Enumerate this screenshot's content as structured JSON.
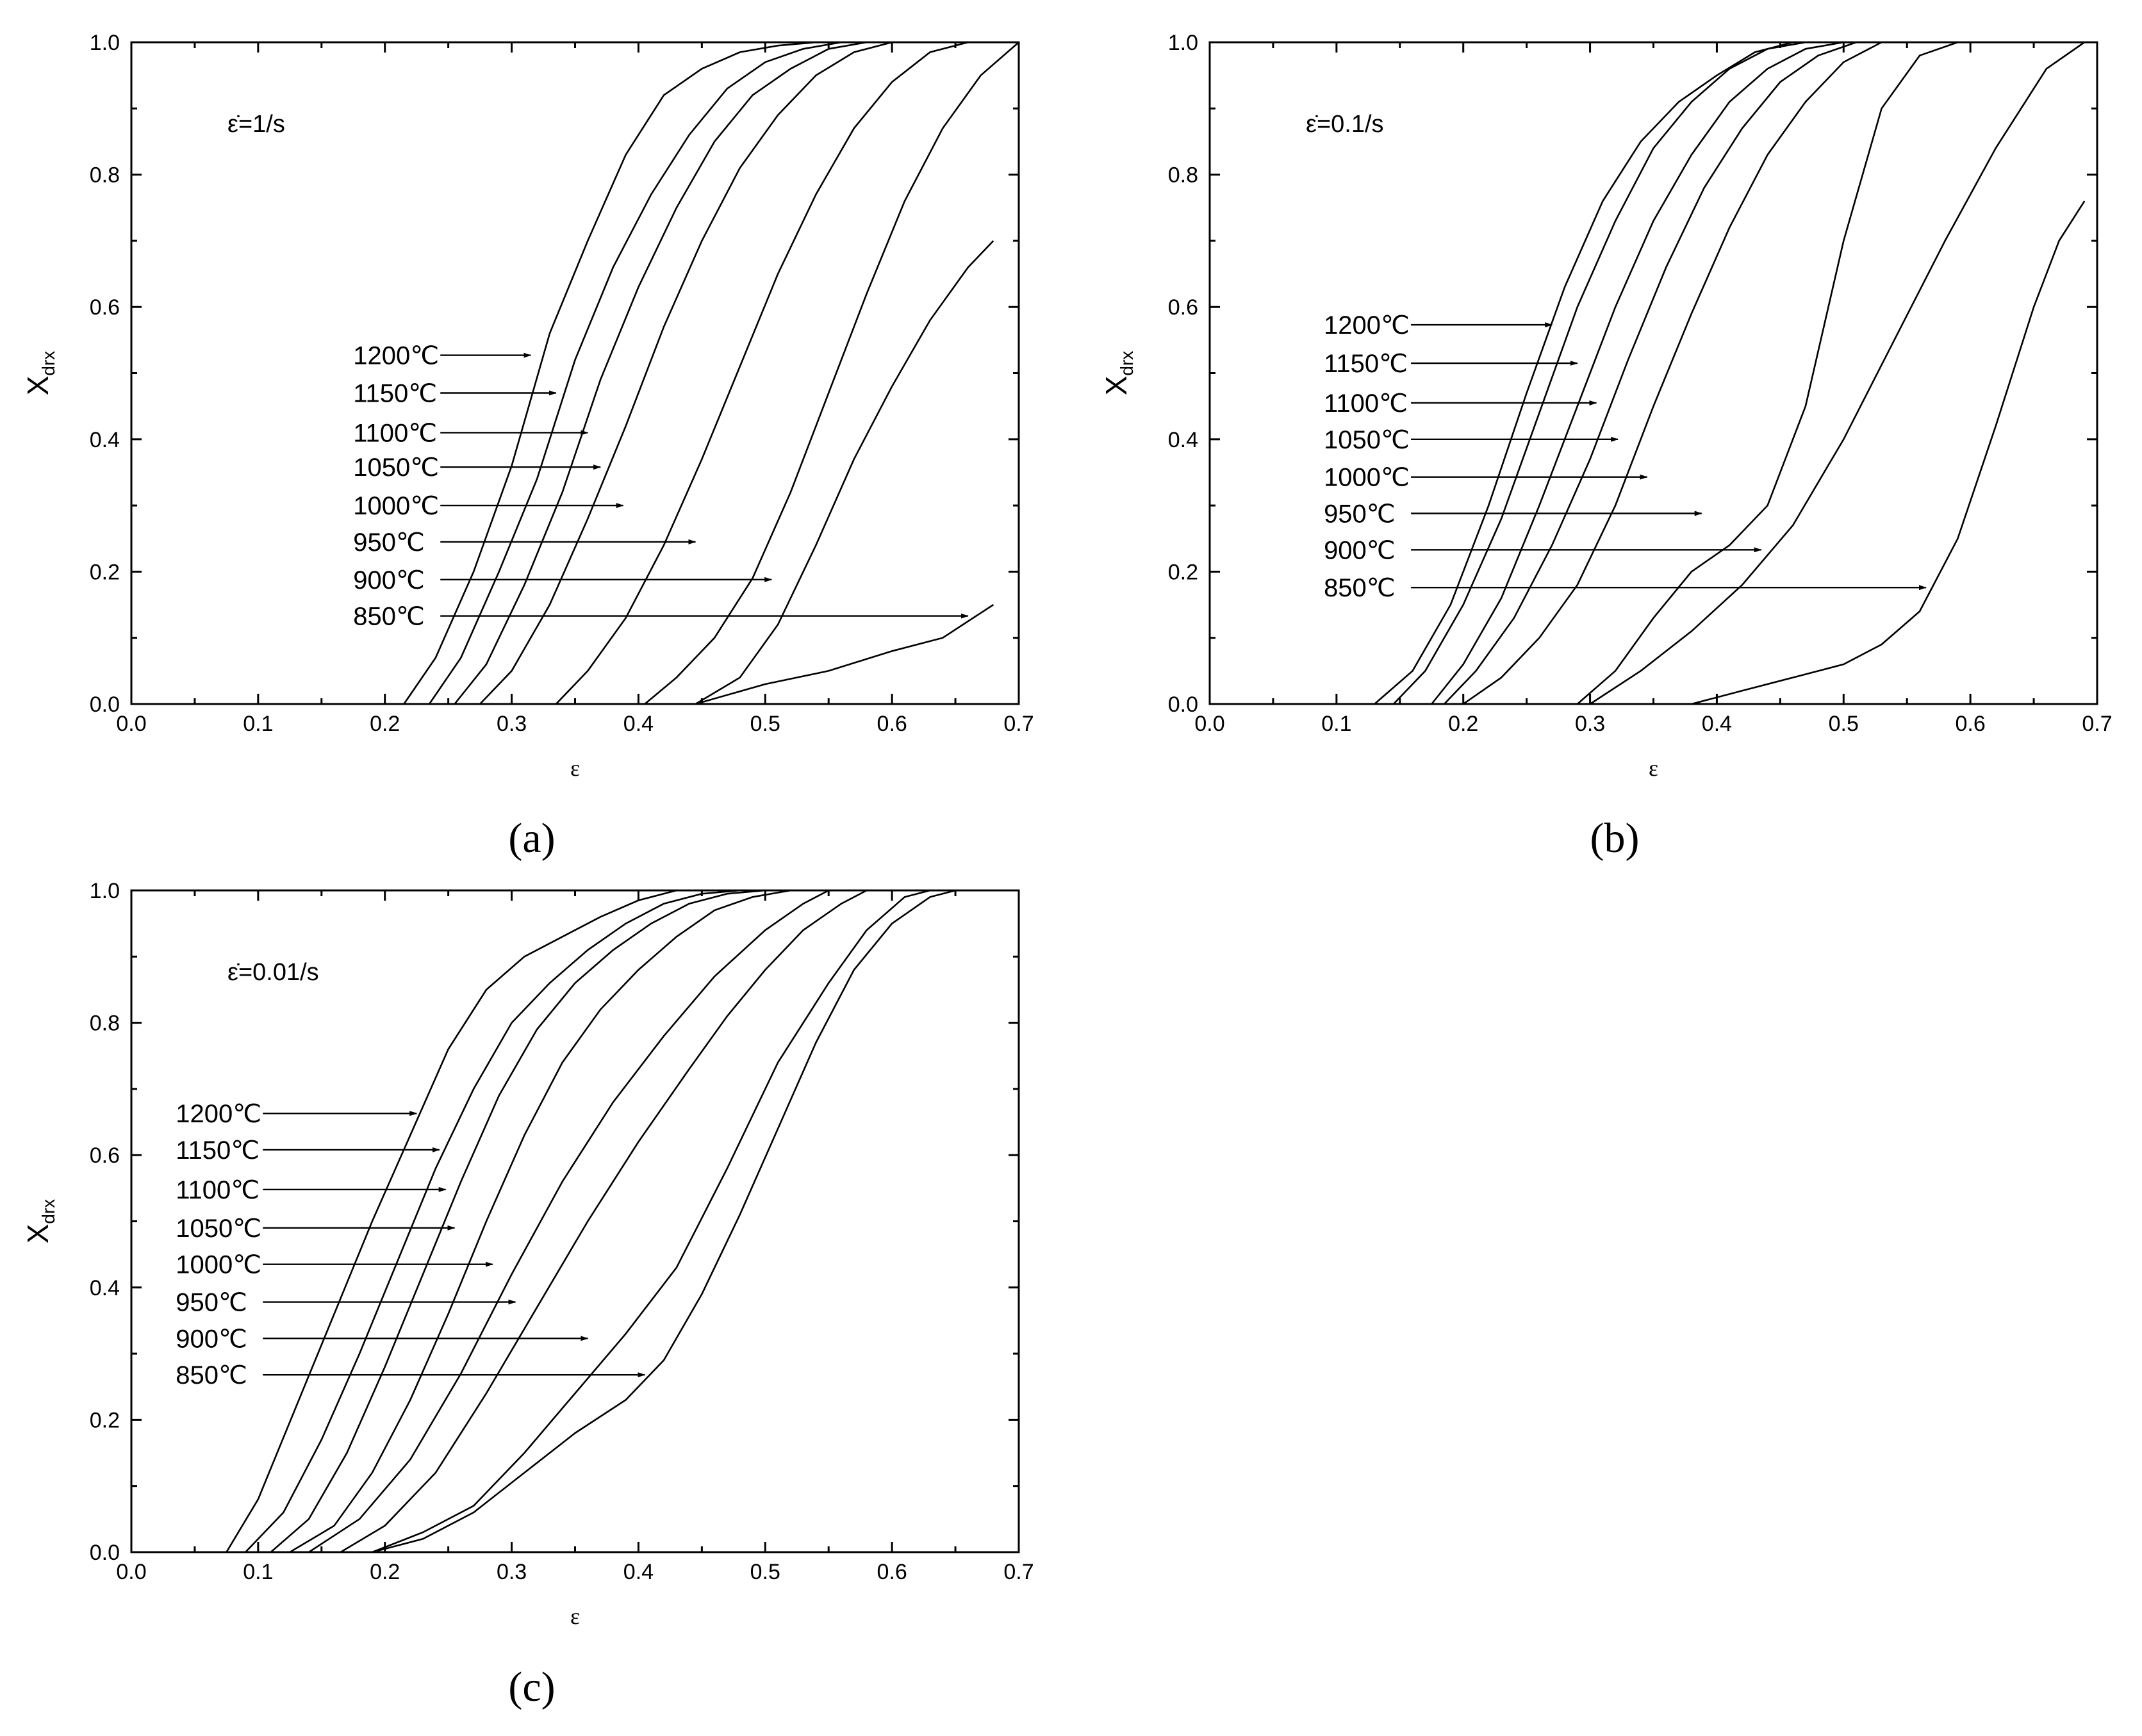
{
  "figure": {
    "panel_labels": [
      "(a)",
      "(b)",
      "(c)"
    ]
  },
  "chart_data": [
    {
      "type": "line",
      "panel": "(a)",
      "rate_label": "ε̇=1/s",
      "xlabel": "ε",
      "ylabel": "X",
      "ylabel_sub": "drx",
      "xlim": [
        0.0,
        0.7
      ],
      "ylim": [
        0.0,
        1.0
      ],
      "xticks": [
        "0.0",
        "0.1",
        "0.2",
        "0.3",
        "0.4",
        "0.5",
        "0.6",
        "0.7"
      ],
      "yticks": [
        "0.0",
        "0.2",
        "0.4",
        "0.6",
        "0.8",
        "1.0"
      ],
      "series": [
        {
          "name": "1200℃",
          "x": [
            0.215,
            0.24,
            0.27,
            0.3,
            0.33,
            0.36,
            0.39,
            0.42,
            0.45,
            0.48,
            0.51,
            0.54
          ],
          "y": [
            0.0,
            0.07,
            0.2,
            0.36,
            0.56,
            0.7,
            0.83,
            0.92,
            0.96,
            0.985,
            0.995,
            1.0
          ]
        },
        {
          "name": "1150℃",
          "x": [
            0.235,
            0.26,
            0.29,
            0.32,
            0.35,
            0.38,
            0.41,
            0.44,
            0.47,
            0.5,
            0.53,
            0.56
          ],
          "y": [
            0.0,
            0.07,
            0.2,
            0.34,
            0.52,
            0.66,
            0.77,
            0.86,
            0.93,
            0.97,
            0.99,
            1.0
          ]
        },
        {
          "name": "1100℃",
          "x": [
            0.255,
            0.28,
            0.31,
            0.34,
            0.37,
            0.4,
            0.43,
            0.46,
            0.49,
            0.52,
            0.55,
            0.58
          ],
          "y": [
            0.0,
            0.06,
            0.18,
            0.32,
            0.49,
            0.63,
            0.75,
            0.85,
            0.92,
            0.96,
            0.99,
            1.0
          ]
        },
        {
          "name": "1050℃",
          "x": [
            0.275,
            0.3,
            0.33,
            0.36,
            0.39,
            0.42,
            0.45,
            0.48,
            0.51,
            0.54,
            0.57,
            0.6
          ],
          "y": [
            0.0,
            0.05,
            0.15,
            0.28,
            0.42,
            0.57,
            0.7,
            0.81,
            0.89,
            0.95,
            0.985,
            1.0
          ]
        },
        {
          "name": "1000℃",
          "x": [
            0.335,
            0.36,
            0.39,
            0.42,
            0.45,
            0.48,
            0.51,
            0.54,
            0.57,
            0.6,
            0.63,
            0.66
          ],
          "y": [
            0.0,
            0.05,
            0.13,
            0.24,
            0.37,
            0.51,
            0.65,
            0.77,
            0.87,
            0.94,
            0.985,
            1.0
          ]
        },
        {
          "name": "950℃",
          "x": [
            0.405,
            0.43,
            0.46,
            0.49,
            0.52,
            0.55,
            0.58,
            0.61,
            0.64,
            0.67,
            0.7
          ],
          "y": [
            0.0,
            0.04,
            0.1,
            0.19,
            0.32,
            0.47,
            0.62,
            0.76,
            0.87,
            0.95,
            1.0
          ]
        },
        {
          "name": "900℃",
          "x": [
            0.445,
            0.48,
            0.51,
            0.54,
            0.57,
            0.6,
            0.63,
            0.66,
            0.68
          ],
          "y": [
            0.0,
            0.04,
            0.12,
            0.24,
            0.37,
            0.48,
            0.58,
            0.66,
            0.7
          ]
        },
        {
          "name": "850℃",
          "x": [
            0.445,
            0.5,
            0.55,
            0.6,
            0.64,
            0.68
          ],
          "y": [
            0.0,
            0.03,
            0.05,
            0.08,
            0.1,
            0.15
          ]
        }
      ],
      "annotations": [
        {
          "text": "1200℃",
          "label_y": 0.527,
          "arrow_to_x": 0.315
        },
        {
          "text": "1150℃",
          "label_y": 0.47,
          "arrow_to_x": 0.335
        },
        {
          "text": "1100℃",
          "label_y": 0.41,
          "arrow_to_x": 0.36
        },
        {
          "text": "1050℃",
          "label_y": 0.358,
          "arrow_to_x": 0.37
        },
        {
          "text": "1000℃",
          "label_y": 0.3,
          "arrow_to_x": 0.388
        },
        {
          "text": "950℃",
          "label_y": 0.245,
          "arrow_to_x": 0.445
        },
        {
          "text": "900℃",
          "label_y": 0.188,
          "arrow_to_x": 0.505
        },
        {
          "text": "850℃",
          "label_y": 0.133,
          "arrow_to_x": 0.66
        }
      ]
    },
    {
      "type": "line",
      "panel": "(b)",
      "rate_label": "ε̇=0.1/s",
      "xlabel": "ε",
      "ylabel": "X",
      "ylabel_sub": "drx",
      "xlim": [
        0.0,
        0.7
      ],
      "ylim": [
        0.0,
        1.0
      ],
      "xticks": [
        "0.0",
        "0.1",
        "0.2",
        "0.3",
        "0.4",
        "0.5",
        "0.6",
        "0.7"
      ],
      "yticks": [
        "0.0",
        "0.2",
        "0.4",
        "0.6",
        "0.8",
        "1.0"
      ],
      "series": [
        {
          "name": "1200℃",
          "x": [
            0.13,
            0.16,
            0.19,
            0.22,
            0.25,
            0.28,
            0.31,
            0.34,
            0.37,
            0.4,
            0.43,
            0.46
          ],
          "y": [
            0.0,
            0.05,
            0.15,
            0.3,
            0.47,
            0.63,
            0.76,
            0.85,
            0.91,
            0.95,
            0.985,
            1.0
          ]
        },
        {
          "name": "1150℃",
          "x": [
            0.145,
            0.17,
            0.2,
            0.23,
            0.26,
            0.29,
            0.32,
            0.35,
            0.38,
            0.41,
            0.44,
            0.47
          ],
          "y": [
            0.0,
            0.05,
            0.15,
            0.28,
            0.44,
            0.6,
            0.73,
            0.84,
            0.91,
            0.96,
            0.99,
            1.0
          ]
        },
        {
          "name": "1100℃",
          "x": [
            0.175,
            0.2,
            0.23,
            0.26,
            0.29,
            0.32,
            0.35,
            0.38,
            0.41,
            0.44,
            0.47,
            0.5
          ],
          "y": [
            0.0,
            0.06,
            0.16,
            0.3,
            0.45,
            0.6,
            0.73,
            0.83,
            0.91,
            0.96,
            0.99,
            1.0
          ]
        },
        {
          "name": "1050℃",
          "x": [
            0.185,
            0.21,
            0.24,
            0.27,
            0.3,
            0.33,
            0.36,
            0.39,
            0.42,
            0.45,
            0.48,
            0.51
          ],
          "y": [
            0.0,
            0.05,
            0.13,
            0.24,
            0.37,
            0.52,
            0.66,
            0.78,
            0.87,
            0.94,
            0.98,
            1.0
          ]
        },
        {
          "name": "1000℃",
          "x": [
            0.2,
            0.23,
            0.26,
            0.29,
            0.32,
            0.35,
            0.38,
            0.41,
            0.44,
            0.47,
            0.5,
            0.53
          ],
          "y": [
            0.0,
            0.04,
            0.1,
            0.18,
            0.3,
            0.45,
            0.59,
            0.72,
            0.83,
            0.91,
            0.97,
            1.0
          ]
        },
        {
          "name": "950℃",
          "x": [
            0.29,
            0.32,
            0.35,
            0.38,
            0.41,
            0.44,
            0.47,
            0.5,
            0.53,
            0.56,
            0.59
          ],
          "y": [
            0.0,
            0.05,
            0.13,
            0.2,
            0.24,
            0.3,
            0.45,
            0.7,
            0.9,
            0.98,
            1.0
          ]
        },
        {
          "name": "900℃",
          "x": [
            0.3,
            0.34,
            0.38,
            0.42,
            0.46,
            0.5,
            0.54,
            0.58,
            0.62,
            0.66,
            0.69
          ],
          "y": [
            0.0,
            0.05,
            0.11,
            0.18,
            0.27,
            0.4,
            0.55,
            0.7,
            0.84,
            0.96,
            1.0
          ]
        },
        {
          "name": "850℃",
          "x": [
            0.38,
            0.42,
            0.46,
            0.5,
            0.53,
            0.56,
            0.59,
            0.62,
            0.65,
            0.67,
            0.69
          ],
          "y": [
            0.0,
            0.02,
            0.04,
            0.06,
            0.09,
            0.14,
            0.25,
            0.42,
            0.6,
            0.7,
            0.76
          ]
        }
      ],
      "annotations": [
        {
          "text": "1200℃",
          "label_y": 0.573,
          "arrow_to_x": 0.27
        },
        {
          "text": "1150℃",
          "label_y": 0.515,
          "arrow_to_x": 0.29
        },
        {
          "text": "1100℃",
          "label_y": 0.455,
          "arrow_to_x": 0.305
        },
        {
          "text": "1050℃",
          "label_y": 0.4,
          "arrow_to_x": 0.322
        },
        {
          "text": "1000℃",
          "label_y": 0.343,
          "arrow_to_x": 0.345
        },
        {
          "text": "950℃",
          "label_y": 0.288,
          "arrow_to_x": 0.388
        },
        {
          "text": "900℃",
          "label_y": 0.233,
          "arrow_to_x": 0.435
        },
        {
          "text": "850℃",
          "label_y": 0.176,
          "arrow_to_x": 0.565
        }
      ]
    },
    {
      "type": "line",
      "panel": "(c)",
      "rate_label": "ε̇=0.01/s",
      "xlabel": "ε",
      "ylabel": "X",
      "ylabel_sub": "drx",
      "xlim": [
        0.0,
        0.7
      ],
      "ylim": [
        0.0,
        1.0
      ],
      "xticks": [
        "0.0",
        "0.1",
        "0.2",
        "0.3",
        "0.4",
        "0.5",
        "0.6",
        "0.7"
      ],
      "yticks": [
        "0.0",
        "0.2",
        "0.4",
        "0.6",
        "0.8",
        "1.0"
      ],
      "series": [
        {
          "name": "1200℃",
          "x": [
            0.075,
            0.1,
            0.13,
            0.16,
            0.19,
            0.22,
            0.25,
            0.28,
            0.31,
            0.34,
            0.37,
            0.4,
            0.43
          ],
          "y": [
            0.0,
            0.08,
            0.22,
            0.36,
            0.5,
            0.63,
            0.76,
            0.85,
            0.9,
            0.93,
            0.96,
            0.985,
            1.0
          ]
        },
        {
          "name": "1150℃",
          "x": [
            0.09,
            0.12,
            0.15,
            0.18,
            0.21,
            0.24,
            0.27,
            0.3,
            0.33,
            0.36,
            0.39,
            0.42,
            0.45,
            0.48
          ],
          "y": [
            0.0,
            0.06,
            0.17,
            0.3,
            0.44,
            0.58,
            0.7,
            0.8,
            0.86,
            0.91,
            0.95,
            0.98,
            0.995,
            1.0
          ]
        },
        {
          "name": "1100℃",
          "x": [
            0.11,
            0.14,
            0.17,
            0.2,
            0.23,
            0.26,
            0.29,
            0.32,
            0.35,
            0.38,
            0.41,
            0.44,
            0.47,
            0.5
          ],
          "y": [
            0.0,
            0.05,
            0.15,
            0.28,
            0.42,
            0.56,
            0.69,
            0.79,
            0.86,
            0.91,
            0.95,
            0.98,
            0.995,
            1.0
          ]
        },
        {
          "name": "1050℃",
          "x": [
            0.125,
            0.16,
            0.19,
            0.22,
            0.25,
            0.28,
            0.31,
            0.34,
            0.37,
            0.4,
            0.43,
            0.46,
            0.49,
            0.52
          ],
          "y": [
            0.0,
            0.04,
            0.12,
            0.23,
            0.36,
            0.5,
            0.63,
            0.74,
            0.82,
            0.88,
            0.93,
            0.97,
            0.99,
            1.0
          ]
        },
        {
          "name": "1000℃",
          "x": [
            0.14,
            0.18,
            0.22,
            0.26,
            0.3,
            0.34,
            0.38,
            0.42,
            0.46,
            0.5,
            0.53,
            0.55
          ],
          "y": [
            0.0,
            0.05,
            0.14,
            0.27,
            0.42,
            0.56,
            0.68,
            0.78,
            0.87,
            0.94,
            0.98,
            1.0
          ]
        },
        {
          "name": "950℃",
          "x": [
            0.165,
            0.2,
            0.24,
            0.28,
            0.32,
            0.36,
            0.4,
            0.44,
            0.47,
            0.5,
            0.53,
            0.56,
            0.58
          ],
          "y": [
            0.0,
            0.04,
            0.12,
            0.24,
            0.37,
            0.5,
            0.62,
            0.73,
            0.81,
            0.88,
            0.94,
            0.98,
            1.0
          ]
        },
        {
          "name": "900℃",
          "x": [
            0.19,
            0.23,
            0.27,
            0.31,
            0.35,
            0.39,
            0.43,
            0.47,
            0.51,
            0.55,
            0.58,
            0.61,
            0.63
          ],
          "y": [
            0.0,
            0.03,
            0.07,
            0.15,
            0.24,
            0.33,
            0.43,
            0.58,
            0.74,
            0.86,
            0.94,
            0.99,
            1.0
          ]
        },
        {
          "name": "850℃",
          "x": [
            0.19,
            0.23,
            0.27,
            0.31,
            0.35,
            0.39,
            0.42,
            0.45,
            0.48,
            0.51,
            0.54,
            0.57,
            0.6,
            0.63,
            0.65
          ],
          "y": [
            0.0,
            0.02,
            0.06,
            0.12,
            0.18,
            0.23,
            0.29,
            0.39,
            0.51,
            0.64,
            0.77,
            0.88,
            0.95,
            0.99,
            1.0
          ]
        }
      ],
      "annotations": [
        {
          "text": "1200℃",
          "label_y": 0.663,
          "arrow_to_x": 0.225
        },
        {
          "text": "1150℃",
          "label_y": 0.608,
          "arrow_to_x": 0.243
        },
        {
          "text": "1100℃",
          "label_y": 0.548,
          "arrow_to_x": 0.248
        },
        {
          "text": "1050℃",
          "label_y": 0.49,
          "arrow_to_x": 0.255
        },
        {
          "text": "1000℃",
          "label_y": 0.435,
          "arrow_to_x": 0.285
        },
        {
          "text": "950℃",
          "label_y": 0.378,
          "arrow_to_x": 0.303
        },
        {
          "text": "900℃",
          "label_y": 0.323,
          "arrow_to_x": 0.36
        },
        {
          "text": "850℃",
          "label_y": 0.268,
          "arrow_to_x": 0.405
        }
      ]
    }
  ]
}
